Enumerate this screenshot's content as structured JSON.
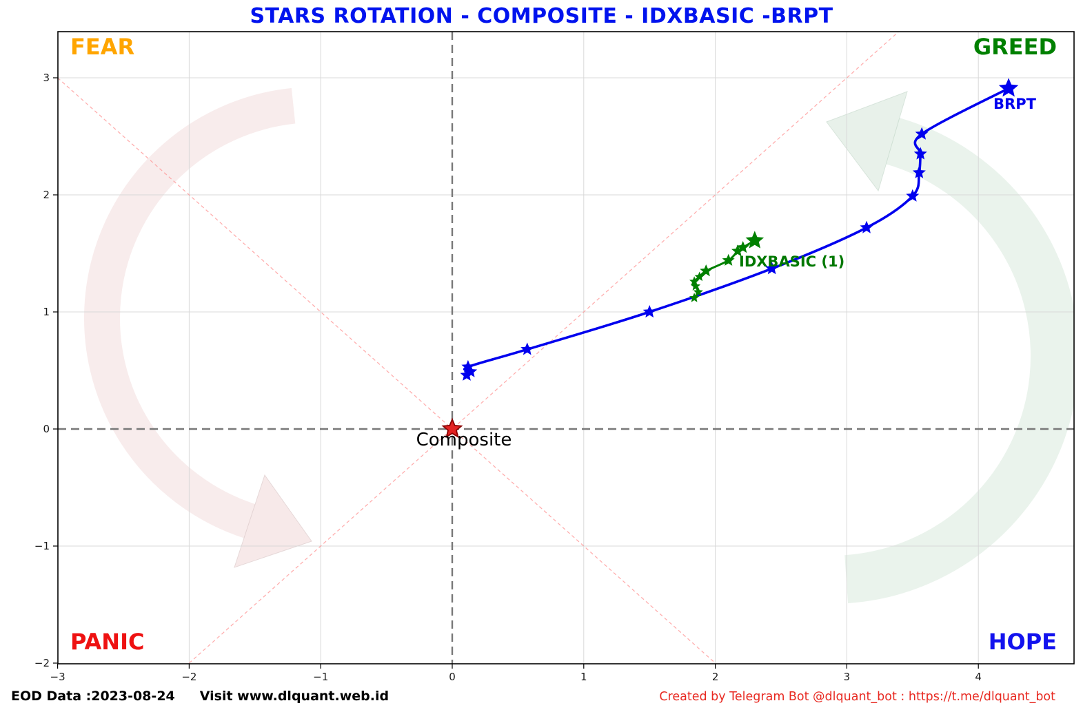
{
  "title": "STARS ROTATION - COMPOSITE - IDXBASIC -BRPT",
  "quadrants": {
    "top_left": {
      "label": "FEAR",
      "color": "#FFA500"
    },
    "top_right": {
      "label": "GREED",
      "color": "#008000"
    },
    "bottom_left": {
      "label": "PANIC",
      "color": "#EE1111"
    },
    "bottom_right": {
      "label": "HOPE",
      "color": "#1212EE"
    }
  },
  "footer": {
    "eod_text": "EOD Data :2023-08-24",
    "visit_text": "Visit www.dlquant.web.id",
    "credit_text": "Created by Telegram Bot @dlquant_bot : https://t.me/dlquant_bot"
  },
  "chart_data": {
    "type": "scatter",
    "title": "STARS ROTATION - COMPOSITE - IDXBASIC -BRPT",
    "xlim": [
      -3.0,
      4.73
    ],
    "ylim": [
      -2.0,
      3.39
    ],
    "x_ticks": [
      -3,
      -2,
      -1,
      0,
      1,
      2,
      3,
      4
    ],
    "y_ticks": [
      -2,
      -1,
      0,
      1,
      2,
      3
    ],
    "grid": true,
    "center_crosshair": true,
    "diagonals": "y=x and y=-x dashed red through origin",
    "series": [
      {
        "name": "BRPT",
        "label": "BRPT",
        "color": "#0000EE",
        "marker": "star",
        "points": [
          [
            0.11,
            0.46
          ],
          [
            0.14,
            0.49
          ],
          [
            0.12,
            0.53
          ],
          [
            0.57,
            0.68
          ],
          [
            1.5,
            1.0
          ],
          [
            2.43,
            1.37
          ],
          [
            3.15,
            1.72
          ],
          [
            3.5,
            1.99
          ],
          [
            3.55,
            2.19
          ],
          [
            3.56,
            2.35
          ],
          [
            3.57,
            2.52
          ],
          [
            4.23,
            2.91
          ]
        ]
      },
      {
        "name": "IDXBASIC",
        "label": "IDXBASIC (1)",
        "color": "#008000",
        "marker": "star",
        "points": [
          [
            1.84,
            1.12
          ],
          [
            1.87,
            1.17
          ],
          [
            1.85,
            1.22
          ],
          [
            1.84,
            1.26
          ],
          [
            1.88,
            1.3
          ],
          [
            1.93,
            1.35
          ],
          [
            2.1,
            1.44
          ],
          [
            2.17,
            1.52
          ],
          [
            2.21,
            1.55
          ],
          [
            2.3,
            1.61
          ]
        ]
      },
      {
        "name": "Composite",
        "label": "Composite",
        "color": "#E32222",
        "marker": "star",
        "points": [
          [
            0.0,
            0.0
          ]
        ]
      }
    ]
  }
}
